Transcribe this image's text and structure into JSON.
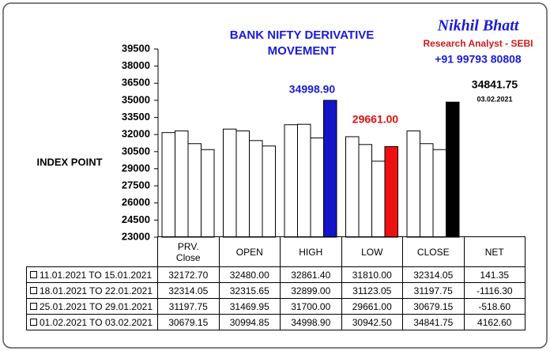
{
  "chart_data": {
    "type": "bar",
    "title_lines": [
      "BANK NIFTY DERIVATIVE",
      "MOVEMENT"
    ],
    "brand": {
      "name": "Nikhil Bhatt",
      "role": "Research Analyst - SEBI",
      "phone": "+91 99793 80808"
    },
    "y_label": "INDEX POINT",
    "categories": [
      "PRV. Close",
      "OPEN",
      "HIGH",
      "LOW",
      "CLOSE"
    ],
    "series": [
      {
        "name": "11.01.2021 TO 15.01.2021",
        "color": "#ffffff",
        "values": [
          32172.7,
          32480.0,
          32861.4,
          31810.0,
          32314.05
        ],
        "value_labels": [
          "32172.70",
          "32480.00",
          "32861.40",
          "31810.00",
          "32314.05"
        ]
      },
      {
        "name": "18.01.2021 TO 22.01.2021",
        "color": "#ffffff",
        "values": [
          32314.05,
          32315.65,
          32899.0,
          31123.05,
          31197.75
        ],
        "value_labels": [
          "32314.05",
          "32315.65",
          "32899.00",
          "31123.05",
          "31197.75"
        ]
      },
      {
        "name": "25.01.2021 TO 29.01.2021",
        "color": "#ffffff",
        "values": [
          31197.75,
          31469.95,
          31700.0,
          29661.0,
          30679.15
        ],
        "value_labels": [
          "31197.75",
          "31469.95",
          "31700.00",
          "29661.00",
          "30679.15"
        ]
      },
      {
        "name": "01.02.2021 TO 03.02.2021",
        "colors": [
          "#ffffff",
          "#ffffff",
          "#1414c8",
          "#ee1111",
          "#000000"
        ],
        "values": [
          30679.15,
          30994.85,
          34998.9,
          30942.5,
          34841.75
        ],
        "value_labels": [
          "30679.15",
          "30994.85",
          "34998.90",
          "30942.50",
          "34841.75"
        ]
      }
    ],
    "net": {
      "header": "NET",
      "values": [
        141.35,
        -1116.3,
        -518.6,
        4162.6
      ],
      "value_labels": [
        "141.35",
        "-1116.30",
        "-518.60",
        "4162.60"
      ]
    },
    "annotations": [
      {
        "text": "34998.90",
        "color": "#1a1adc"
      },
      {
        "text": "29661.00",
        "color": "#e01010"
      },
      {
        "text": "34841.75",
        "color": "#000000"
      },
      {
        "text": "03.02.2021",
        "color": "#000000"
      }
    ],
    "ylim": [
      23000,
      39500
    ],
    "yticks": [
      23000,
      24500,
      26000,
      27500,
      29000,
      30500,
      32000,
      33500,
      35000,
      36500,
      38000,
      39500
    ]
  }
}
